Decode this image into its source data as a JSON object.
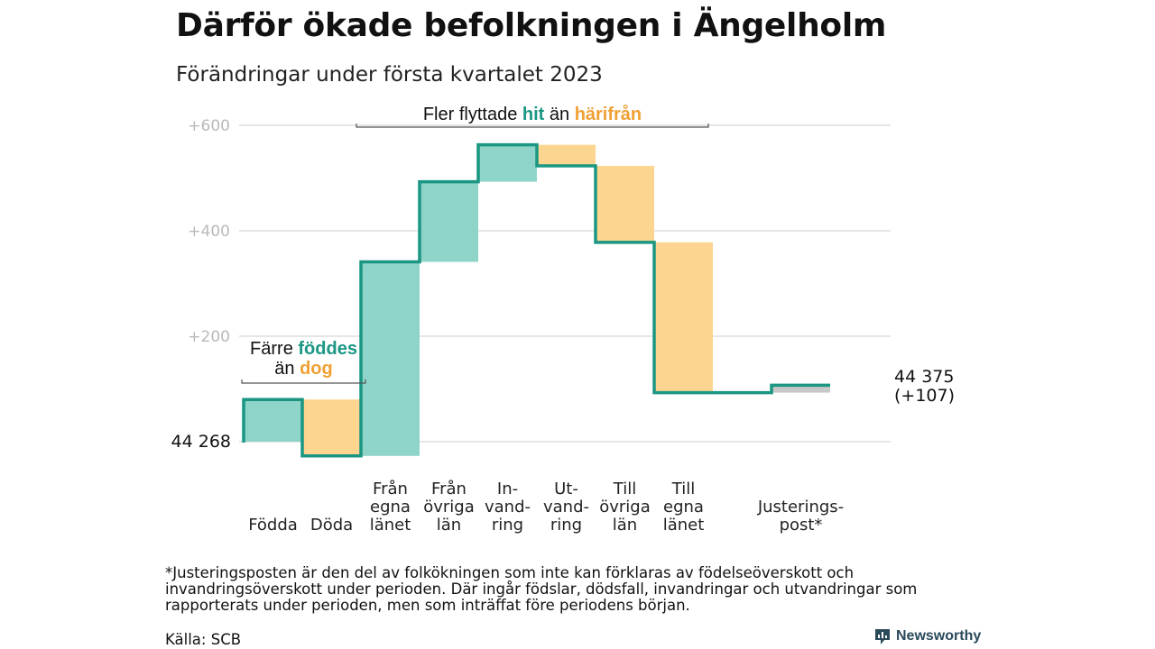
{
  "title": "Därför ökade befolkningen i Ängelholm",
  "subtitle": "Förändringar under första kvartalet 2023",
  "footnote": "*Justeringsposten är den del av folkökningen som inte kan förklaras av födelseöverskott och invandringsöverskott under perioden. Där ingår födslar, dödsfall, invandringar och utvandringar som rapporterats under perioden, men som inträffat före periodens början.",
  "source": "Källa: SCB",
  "brand": "Newsworthy",
  "colors": {
    "increase": "#8ed4c9",
    "decrease": "#fcd690",
    "adjustment": "#c8c8c8",
    "line": "#1a9683",
    "grid": "#dddddd"
  },
  "chart_data": {
    "type": "waterfall",
    "y_ticks": [
      "+600",
      "+400",
      "+200"
    ],
    "y_tick_values": [
      600,
      400,
      200
    ],
    "ylim": [
      -30,
      630
    ],
    "start": {
      "label": "44 268",
      "value": 0
    },
    "end": {
      "label_line1": "44 375",
      "label_line2": "(+107)",
      "value": 107
    },
    "steps": [
      {
        "label": [
          "Födda"
        ],
        "change": 80,
        "kind": "increase"
      },
      {
        "label": [
          "Döda"
        ],
        "change": -107,
        "kind": "decrease"
      },
      {
        "label": [
          "Från",
          "egna",
          "länet"
        ],
        "change": 368,
        "kind": "increase"
      },
      {
        "label": [
          "Från",
          "övriga",
          "län"
        ],
        "change": 152,
        "kind": "increase"
      },
      {
        "label": [
          "In-",
          "vand-",
          "ring"
        ],
        "change": 70,
        "kind": "increase"
      },
      {
        "label": [
          "Ut-",
          "vand-",
          "ring"
        ],
        "change": -40,
        "kind": "decrease"
      },
      {
        "label": [
          "Till",
          "övriga",
          "län"
        ],
        "change": -145,
        "kind": "decrease"
      },
      {
        "label": [
          "Till",
          "egna",
          "länet"
        ],
        "change": -285,
        "kind": "decrease"
      },
      {
        "label": [],
        "change": 0,
        "kind": "none"
      },
      {
        "label": [
          "Justerings-",
          "post*"
        ],
        "change": 14,
        "kind": "adjustment"
      }
    ],
    "annotations": [
      {
        "parts": [
          {
            "text": "Fler flyttade ",
            "cls": ""
          },
          {
            "text": "hit",
            "cls": "hit"
          },
          {
            "text": " än ",
            "cls": ""
          },
          {
            "text": "härifrån",
            "cls": "harifran"
          }
        ]
      },
      {
        "line1": [
          {
            "text": "Färre ",
            "cls": ""
          },
          {
            "text": "föddes",
            "cls": "hit"
          }
        ],
        "line2": [
          {
            "text": "än ",
            "cls": ""
          },
          {
            "text": "dog",
            "cls": "harifran"
          }
        ]
      }
    ]
  }
}
